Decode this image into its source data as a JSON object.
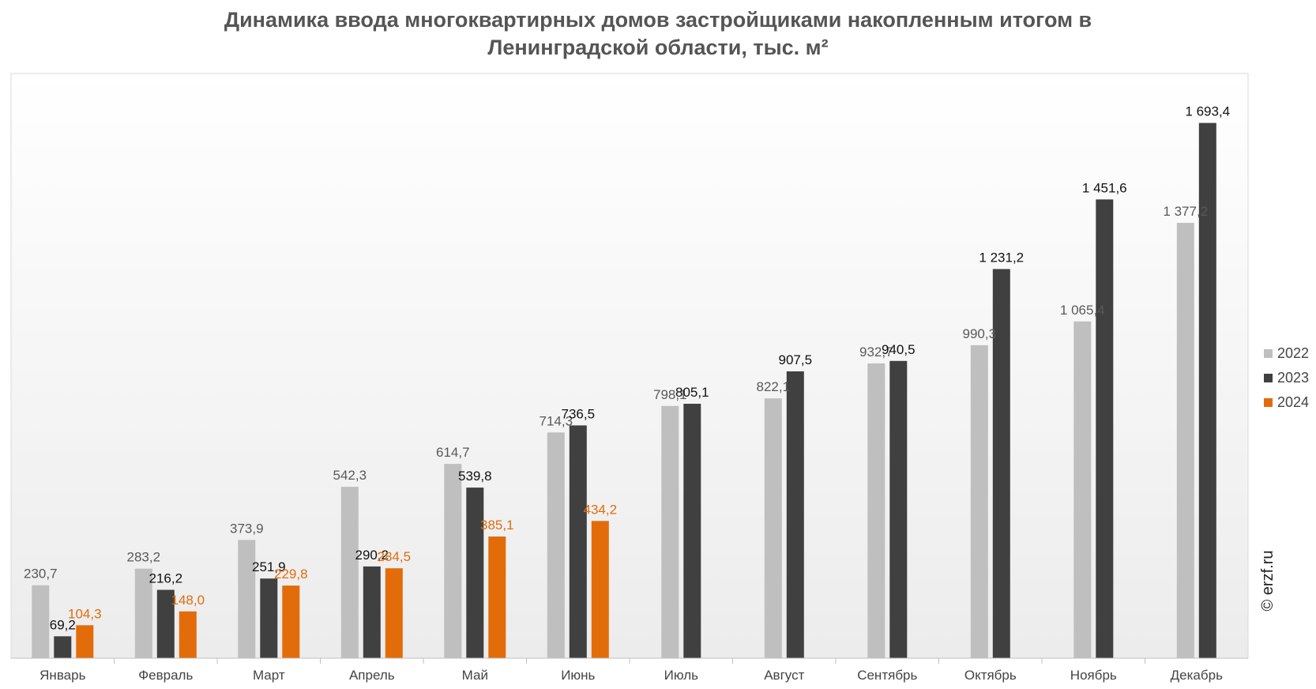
{
  "chart_data": {
    "type": "bar",
    "title": "Динамика ввода многоквартирных домов застройщиками накопленным итогом в Ленинградской области, тыс. м²",
    "title_lines": [
      "Динамика ввода многоквартирных домов застройщиками накопленным итогом в",
      "Ленинградской области, тыс. м²"
    ],
    "categories": [
      "Январь",
      "Февраль",
      "Март",
      "Апрель",
      "Май",
      "Июнь",
      "Июль",
      "Август",
      "Сентябрь",
      "Октябрь",
      "Ноябрь",
      "Декабрь"
    ],
    "ylim": [
      0,
      1850
    ],
    "grid": false,
    "legend_position": "right",
    "series": [
      {
        "name": "2022",
        "color": "#bfbfbf",
        "label_color": "#595959",
        "values": [
          230.7,
          283.2,
          373.9,
          542.3,
          614.7,
          714.3,
          798.1,
          822.1,
          932.7,
          990.3,
          1065.4,
          1377.2
        ],
        "labels": [
          "230,7",
          "283,2",
          "373,9",
          "542,3",
          "614,7",
          "714,3",
          "798,1",
          "822,1",
          "932,7",
          "990,3",
          "1 065,4",
          "1 377,2"
        ]
      },
      {
        "name": "2023",
        "color": "#404040",
        "label_color": "#111111",
        "values": [
          69.2,
          216.2,
          251.9,
          290.2,
          539.8,
          736.5,
          805.1,
          907.5,
          940.5,
          1231.2,
          1451.6,
          1693.4
        ],
        "labels": [
          "69,2",
          "216,2",
          "251,9",
          "290,2",
          "539,8",
          "736,5",
          "805,1",
          "907,5",
          "940,5",
          "1 231,2",
          "1 451,6",
          "1 693,4"
        ]
      },
      {
        "name": "2024",
        "color": "#e36c0a",
        "label_color": "#e36c0a",
        "values": [
          104.3,
          148.0,
          229.8,
          284.5,
          385.1,
          434.2,
          null,
          null,
          null,
          null,
          null,
          null
        ],
        "labels": [
          "104,3",
          "148,0",
          "229,8",
          "284,5",
          "385,1",
          "434,2",
          null,
          null,
          null,
          null,
          null,
          null
        ]
      }
    ]
  },
  "watermark": "© erzf.ru"
}
